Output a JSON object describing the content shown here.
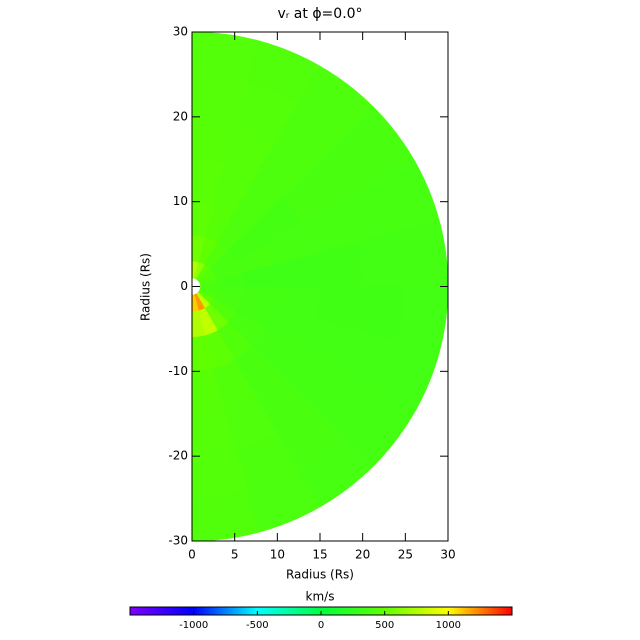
{
  "chart_data": {
    "type": "polar-heatmap",
    "title": "vᵣ at ϕ=0.0°",
    "xlabel": "Radius (Rs)",
    "ylabel": "Radius (Rs)",
    "xlim": [
      0,
      30
    ],
    "ylim": [
      -30,
      30
    ],
    "xticks": [
      0,
      5,
      10,
      15,
      20,
      25,
      30
    ],
    "yticks": [
      -30,
      -20,
      -10,
      0,
      10,
      20,
      30
    ],
    "r_edges": [
      1,
      3,
      6,
      10,
      15,
      20,
      25,
      30
    ],
    "theta_edges": [
      0,
      15,
      30,
      45,
      60,
      75,
      90,
      105,
      120,
      135,
      150,
      165,
      180
    ],
    "values": [
      [
        750,
        650,
        500,
        450,
        420,
        400,
        380,
        400,
        500,
        800,
        1200,
        1100
      ],
      [
        550,
        500,
        420,
        380,
        380,
        360,
        370,
        380,
        420,
        550,
        800,
        750
      ],
      [
        480,
        450,
        400,
        360,
        380,
        330,
        360,
        360,
        380,
        420,
        480,
        500
      ],
      [
        460,
        440,
        400,
        360,
        370,
        330,
        350,
        350,
        360,
        380,
        420,
        450
      ],
      [
        450,
        440,
        400,
        380,
        370,
        340,
        340,
        350,
        360,
        380,
        410,
        440
      ],
      [
        440,
        430,
        400,
        380,
        370,
        350,
        340,
        350,
        360,
        380,
        400,
        430
      ],
      [
        430,
        420,
        400,
        380,
        370,
        360,
        350,
        350,
        360,
        370,
        390,
        420
      ]
    ],
    "colorbar": {
      "label": "km/s",
      "lim": [
        -1500,
        1500
      ],
      "ticks": [
        -1000,
        -500,
        0,
        500,
        1000
      ],
      "colors": [
        "#7f00ff",
        "#0000ff",
        "#00ffff",
        "#00ff40",
        "#60ff00",
        "#ffff00",
        "#ff0000"
      ]
    }
  }
}
